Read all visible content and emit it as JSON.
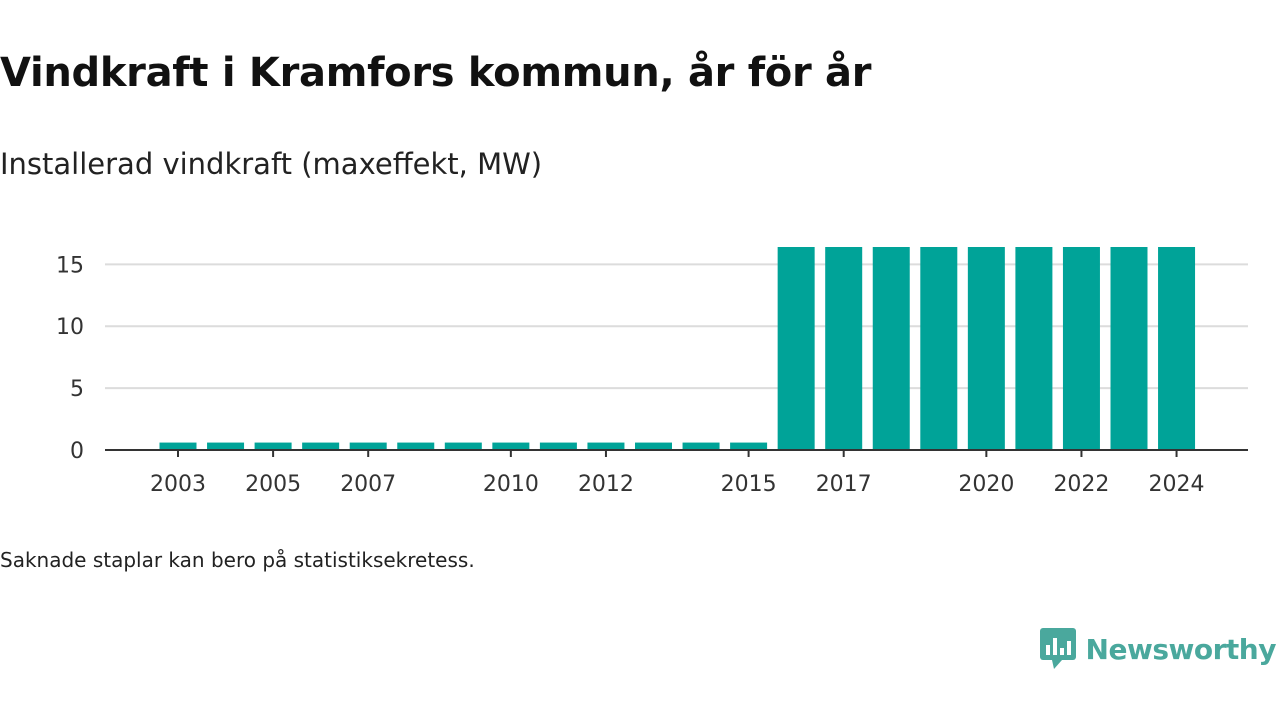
{
  "title": "Vindkraft i Kramfors kommun, år för år",
  "subtitle": "Installerad vindkraft (maxeffekt, MW)",
  "footnote": "Saknade staplar kan bero på statistiksekretess.",
  "brand": {
    "name": "Newsworthy",
    "icon": "newsworthy-logo-icon",
    "color": "#4aa89d"
  },
  "chart_data": {
    "type": "bar",
    "categories": [
      "2003",
      "2004",
      "2005",
      "2006",
      "2007",
      "2008",
      "2009",
      "2010",
      "2011",
      "2012",
      "2013",
      "2014",
      "2015",
      "2016",
      "2017",
      "2018",
      "2019",
      "2020",
      "2021",
      "2022",
      "2023",
      "2024"
    ],
    "values": [
      0.6,
      0.6,
      0.6,
      0.6,
      0.6,
      0.6,
      0.6,
      0.6,
      0.6,
      0.6,
      0.6,
      0.6,
      0.6,
      16.4,
      16.4,
      16.4,
      16.4,
      16.4,
      16.4,
      16.4,
      16.4,
      16.4
    ],
    "x_tick_labels": [
      "2003",
      "2005",
      "2007",
      "2010",
      "2012",
      "2015",
      "2017",
      "2020",
      "2022",
      "2024"
    ],
    "y_ticks": [
      0,
      5,
      10,
      15
    ],
    "ylim": [
      0,
      16.4
    ],
    "grid": true,
    "bar_color": "#00a398",
    "xlabel": "",
    "ylabel": ""
  }
}
